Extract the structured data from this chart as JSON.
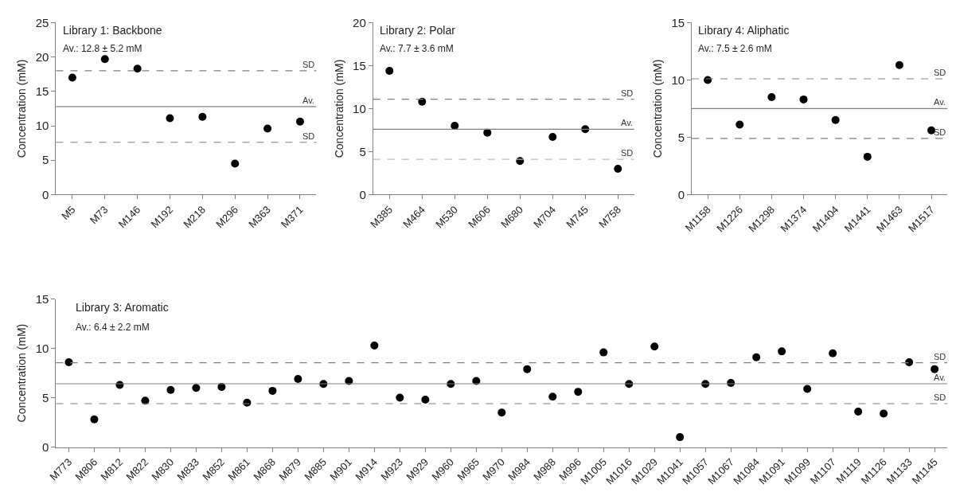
{
  "chart_data": [
    {
      "type": "scatter",
      "title": "Library 1: Backbone",
      "subtitle": "Av.: 12.8 ± 5.2 mM",
      "ylabel": "Concentration (mM)",
      "categories": [
        "M5",
        "M73",
        "M146",
        "M192",
        "M218",
        "M296",
        "M363",
        "M371"
      ],
      "series": [
        {
          "color": "#000000",
          "values": [
            17.0,
            19.7,
            18.3,
            11.1,
            11.3,
            4.5,
            9.6,
            10.6
          ]
        }
      ],
      "ylim": [
        0,
        25
      ],
      "yticks": [
        0,
        5,
        10,
        15,
        20,
        25
      ],
      "marker": "circle",
      "grid": false,
      "ref_lines": [
        {
          "axis": "y",
          "value": 18.0,
          "label": "SD",
          "color": "#808080",
          "line_style": "dashed"
        },
        {
          "axis": "y",
          "value": 12.8,
          "label": "Av.",
          "color": "#808080",
          "line_style": "solid"
        },
        {
          "axis": "y",
          "value": 7.6,
          "label": "SD",
          "color": "#808080",
          "line_style": "dashed"
        }
      ]
    },
    {
      "type": "scatter",
      "title": "Library 2: Polar",
      "subtitle": "Av.: 7.7 ± 3.6 mM",
      "ylabel": "Concentration (mM)",
      "categories": [
        "M385",
        "M464",
        "M530",
        "M606",
        "M680",
        "M704",
        "M745",
        "M758"
      ],
      "series": [
        {
          "color": "#000000",
          "values": [
            14.4,
            10.8,
            8.0,
            7.2,
            3.9,
            6.7,
            7.6,
            3.0
          ]
        }
      ],
      "ylim": [
        0,
        20
      ],
      "yticks": [
        0,
        5,
        10,
        15,
        20
      ],
      "marker": "circle",
      "grid": false,
      "ref_lines": [
        {
          "axis": "y",
          "value": 11.1,
          "label": "SD",
          "color": "#808080",
          "line_style": "dashed"
        },
        {
          "axis": "y",
          "value": 7.6,
          "label": "Av.",
          "color": "#808080",
          "line_style": "solid"
        },
        {
          "axis": "y",
          "value": 4.1,
          "label": "SD",
          "color": "#bbbbbb",
          "line_style": "dashed"
        }
      ]
    },
    {
      "type": "scatter",
      "title": "Library 4: Aliphatic",
      "subtitle": "Av.: 7.5 ± 2.6 mM",
      "ylabel": "Concentration (mM)",
      "categories": [
        "M1158",
        "M1226",
        "M1298",
        "M1374",
        "M1404",
        "M1441",
        "M1463",
        "M1517"
      ],
      "series": [
        {
          "color": "#000000",
          "values": [
            10.0,
            6.1,
            8.5,
            8.3,
            6.5,
            3.3,
            11.3,
            5.6
          ]
        }
      ],
      "ylim": [
        0,
        15
      ],
      "yticks": [
        0,
        5,
        10,
        15
      ],
      "marker": "circle",
      "grid": false,
      "ref_lines": [
        {
          "axis": "y",
          "value": 10.1,
          "label": "SD",
          "color": "#808080",
          "line_style": "dashed"
        },
        {
          "axis": "y",
          "value": 7.5,
          "label": "Av.",
          "color": "#808080",
          "line_style": "solid"
        },
        {
          "axis": "y",
          "value": 4.9,
          "label": "SD",
          "color": "#808080",
          "line_style": "dashed"
        }
      ]
    },
    {
      "type": "scatter",
      "title": "Library 3: Aromatic",
      "subtitle": "Av.: 6.4 ± 2.2 mM",
      "ylabel": "Concentration (mM)",
      "categories": [
        "M773",
        "M806",
        "M812",
        "M822",
        "M830",
        "M833",
        "M852",
        "M861",
        "M868",
        "M879",
        "M885",
        "M901",
        "M914",
        "M923",
        "M929",
        "M960",
        "M965",
        "M970",
        "M984",
        "M988",
        "M996",
        "M1005",
        "M1016",
        "M1029",
        "M1041",
        "M1057",
        "M1067",
        "M1084",
        "M1091",
        "M1099",
        "M1107",
        "M1119",
        "M1126",
        "M1133",
        "M1145"
      ],
      "series": [
        {
          "color": "#000000",
          "values": [
            8.6,
            2.8,
            6.3,
            4.7,
            5.8,
            6.0,
            6.1,
            4.5,
            5.7,
            6.9,
            6.4,
            6.7,
            10.3,
            5.0,
            4.8,
            6.4,
            6.7,
            3.5,
            7.9,
            5.1,
            5.6,
            9.6,
            6.4,
            10.2,
            1.0,
            6.4,
            6.5,
            9.1,
            9.7,
            5.9,
            9.5,
            3.6,
            3.4,
            8.6,
            7.9
          ]
        }
      ],
      "ylim": [
        0,
        15
      ],
      "yticks": [
        0,
        5,
        10,
        15
      ],
      "marker": "circle",
      "grid": false,
      "ref_lines": [
        {
          "axis": "y",
          "value": 8.55,
          "label": "SD",
          "color": "#808080",
          "line_style": "dashed"
        },
        {
          "axis": "y",
          "value": 6.42,
          "label": "Av.",
          "color": "#808080",
          "line_style": "solid"
        },
        {
          "axis": "y",
          "value": 4.4,
          "label": "SD",
          "color": "#808080",
          "line_style": "dashed"
        }
      ]
    }
  ]
}
